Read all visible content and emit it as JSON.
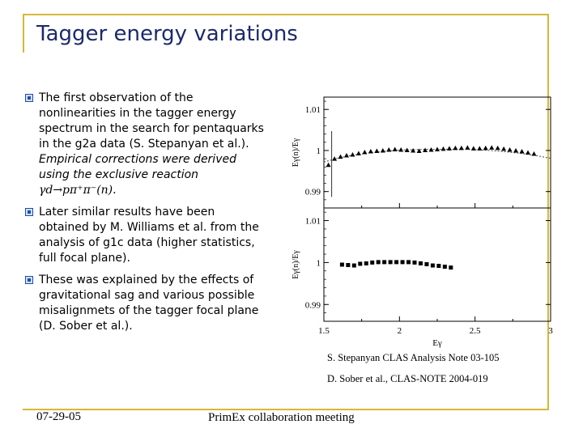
{
  "slide": {
    "title": "Tagger energy variations",
    "bullets": [
      {
        "text": "The first observation of the nonlinearities in the tagger energy spectrum in the search for pentaquarks in the g2a data (S. Stepanyan et al.).",
        "italic_text": "Empirical corrections were derived  using the exclusive reaction ",
        "reaction": "γd→pπ⁺π⁻(n)."
      },
      {
        "text": "Later similar results have been obtained by M. Williams et al. from the analysis of g1c data (higher statistics, full focal plane)."
      },
      {
        "text": "These was explained by the effects of gravitational sag and various possible misalignmets of the tagger focal plane (D. Sober et al.)."
      }
    ],
    "references": [
      "S. Stepanyan CLAS Analysis Note 03-105",
      "D. Sober et al., CLAS-NOTE 2004-019"
    ],
    "footer": {
      "date": "07-29-05",
      "meeting": "PrimEx collaboration meeting"
    }
  },
  "chart_data": [
    {
      "type": "scatter",
      "panel": "top",
      "title": "",
      "xlabel": "",
      "ylabel": "Eγ(n)/Eγ",
      "yticks": [
        "1.01",
        "1",
        "0.99"
      ],
      "ylim": [
        0.986,
        1.013
      ],
      "xlim": [
        1.5,
        3.0
      ],
      "x": [
        1.53,
        1.57,
        1.61,
        1.65,
        1.69,
        1.73,
        1.77,
        1.81,
        1.85,
        1.89,
        1.93,
        1.97,
        2.01,
        2.05,
        2.09,
        2.13,
        2.17,
        2.21,
        2.25,
        2.29,
        2.33,
        2.37,
        2.41,
        2.45,
        2.49,
        2.53,
        2.57,
        2.61,
        2.65,
        2.69,
        2.73,
        2.77,
        2.81,
        2.85,
        2.89
      ],
      "y": [
        0.9965,
        0.998,
        0.9985,
        0.9988,
        0.999,
        0.9993,
        0.9996,
        0.9998,
        0.9999,
        1.0,
        1.0002,
        1.0003,
        1.0002,
        1.0001,
        1.0,
        0.9999,
        1.0001,
        1.0002,
        1.0003,
        1.0004,
        1.0005,
        1.0006,
        1.0006,
        1.0007,
        1.0005,
        1.0005,
        1.0006,
        1.0007,
        1.0006,
        1.0004,
        1.0002,
        1.0,
        0.9998,
        0.9995,
        0.9992
      ],
      "fit": {
        "x": [
          1.5,
          1.6,
          1.7,
          1.8,
          1.9,
          2.0,
          2.1,
          2.2,
          2.3,
          2.4,
          2.5,
          2.6,
          2.7,
          2.8,
          2.9,
          3.0
        ],
        "y": [
          0.9972,
          0.9982,
          0.9989,
          0.9994,
          0.9998,
          1.0001,
          1.0002,
          1.0003,
          1.0003,
          1.0003,
          1.0002,
          1.0,
          0.9997,
          0.9993,
          0.9988,
          0.9981
        ]
      },
      "marker": "triangle",
      "vline_x": 1.53
    },
    {
      "type": "scatter",
      "panel": "bottom",
      "title": "",
      "xlabel": "Eγ",
      "ylabel": "Eγ(n)/Eγ",
      "yticks": [
        "1.01",
        "1",
        "0.99"
      ],
      "xticks": [
        "1.5",
        "2",
        "2.5",
        "3"
      ],
      "ylim": [
        0.986,
        1.013
      ],
      "xlim": [
        1.5,
        3.0
      ],
      "x": [
        1.62,
        1.66,
        1.7,
        1.74,
        1.78,
        1.82,
        1.86,
        1.9,
        1.94,
        1.98,
        2.02,
        2.06,
        2.1,
        2.14,
        2.18,
        2.22,
        2.26,
        2.3,
        2.34
      ],
      "y": [
        0.9995,
        0.9994,
        0.9993,
        0.9997,
        0.9998,
        1.0,
        1.0001,
        1.0001,
        1.0001,
        1.0001,
        1.0001,
        1.0001,
        1.0,
        0.9998,
        0.9996,
        0.9993,
        0.9992,
        0.999,
        0.9988
      ],
      "marker": "square"
    }
  ]
}
